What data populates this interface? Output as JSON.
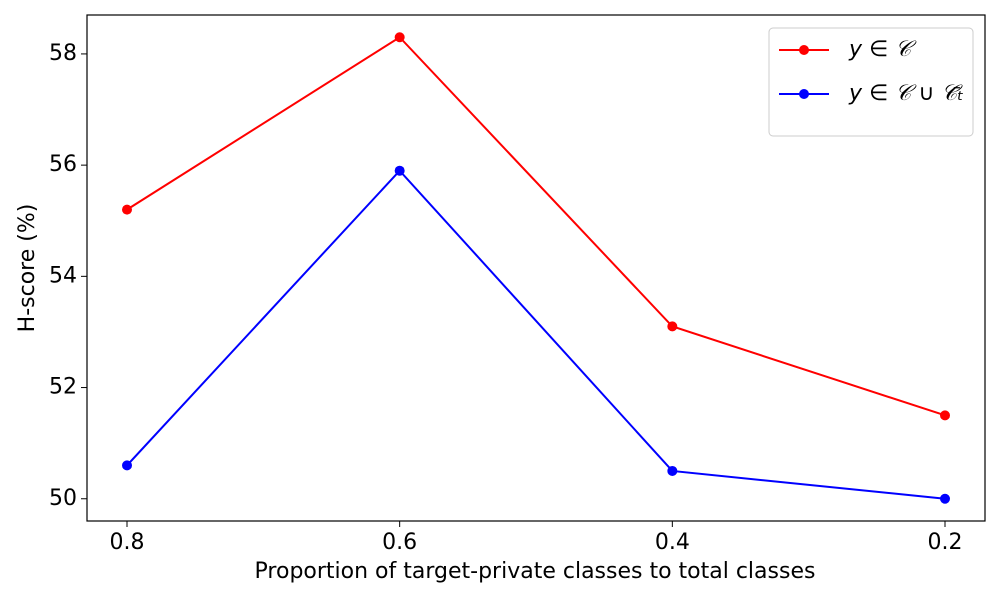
{
  "chart_data": {
    "type": "line",
    "xlabel": "Proportion of target-private classes to total classes",
    "ylabel": "H-score (%)",
    "categories": [
      "0.8",
      "0.6",
      "0.4",
      "0.2"
    ],
    "series": [
      {
        "name": "y ∈ 𝒞",
        "color": "#ff0000",
        "values": [
          55.2,
          58.3,
          53.1,
          51.5
        ]
      },
      {
        "name": "y ∈ 𝒞 ∪ 𝒞̄ₜ",
        "color": "#0000ff",
        "values": [
          50.6,
          55.9,
          50.5,
          50.0
        ]
      }
    ],
    "ylim": [
      49.6,
      58.7
    ],
    "yticks": [
      50,
      52,
      54,
      56,
      58
    ],
    "legend": "upper right"
  }
}
